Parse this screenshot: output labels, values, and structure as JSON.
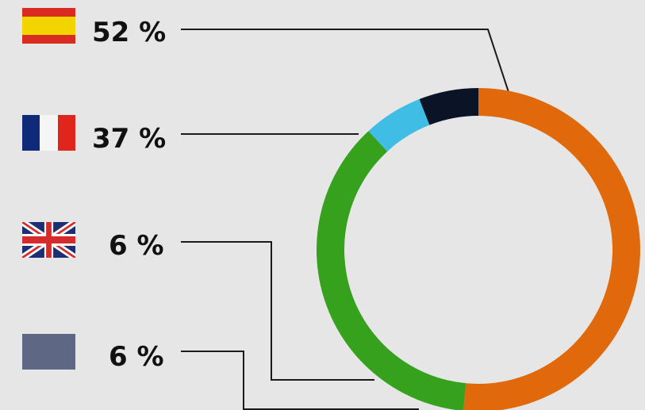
{
  "chart_data": {
    "type": "pie",
    "variant": "donut",
    "categories": [
      "Spain",
      "France",
      "United Kingdom",
      "Other"
    ],
    "values": [
      52,
      37,
      6,
      6
    ],
    "labels": [
      "52 %",
      "37 %",
      "6 %",
      "6 %"
    ],
    "colors": [
      "#e0690c",
      "#35a11c",
      "#3fbde4",
      "#0a1426"
    ],
    "legend_placement": "left",
    "legend_icons": [
      "flag-spain",
      "flag-france",
      "flag-uk",
      "plain-gray-swatch"
    ],
    "title": ""
  },
  "background": "#e6e6e6",
  "leader_line_color": "#1a1a1a"
}
